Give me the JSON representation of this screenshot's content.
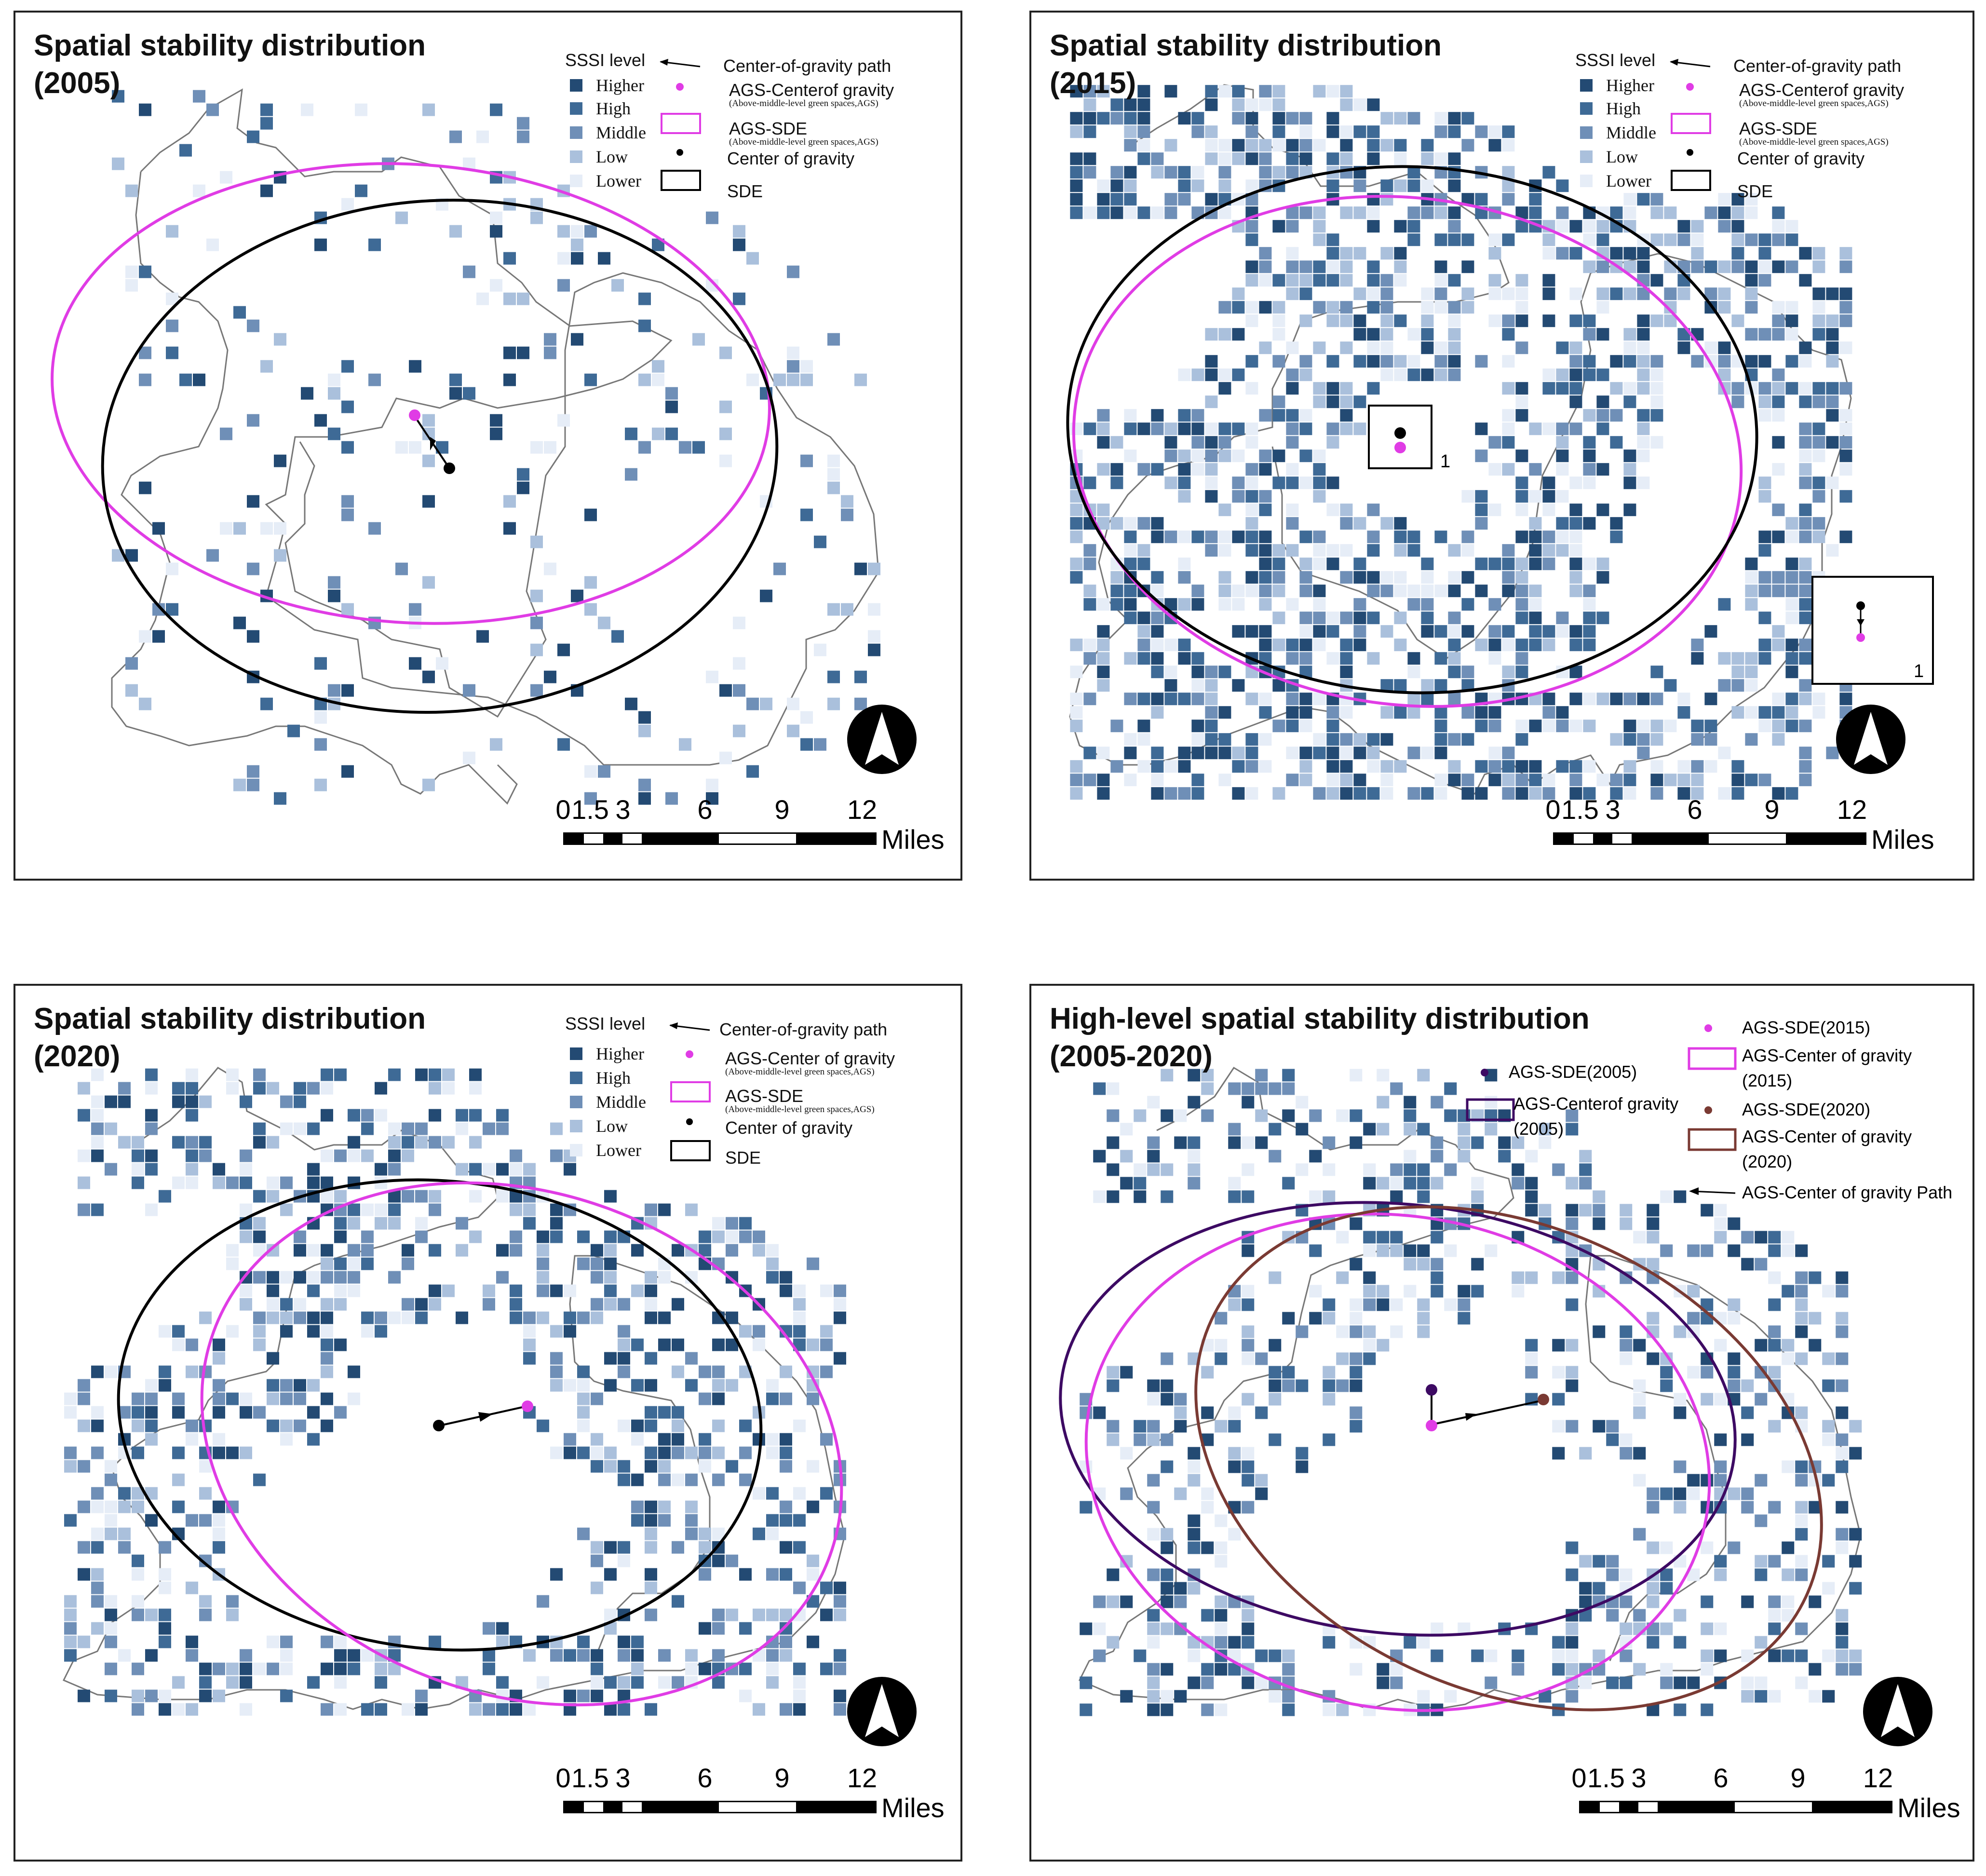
{
  "colors": {
    "higher": "#234a73",
    "high": "#3e6a96",
    "middle": "#6f8fb7",
    "low": "#aac0dc",
    "lower": "#e6edf7",
    "magenta": "#e03ce5",
    "black": "#000000",
    "purple2005": "#3d0a63",
    "brown2020": "#7a3a33"
  },
  "panels": [
    {
      "title_line1": "Spatial stability distribution",
      "title_line2": "(2005)",
      "legend": {
        "title": "SSSI level",
        "levels": [
          "Higher",
          "High",
          "Middle",
          "Low",
          "Lower"
        ],
        "path_label": "Center-of-gravity path",
        "ags_center_label": "AGS-Centerof gravity",
        "ags_center_sub": "(Above-middle-level green spaces,AGS)",
        "ags_sde_label": "AGS-SDE",
        "ags_sde_sub": "(Above-middle-level green spaces,AGS)",
        "center_label": "Center of gravity",
        "sde_label": "SDE"
      },
      "scale": {
        "ticks": [
          "0",
          "1.5",
          "3",
          "6",
          "9",
          "12"
        ],
        "unit": "Miles"
      }
    },
    {
      "title_line1": "Spatial stability distribution",
      "title_line2": "(2015)",
      "legend": {
        "title": "SSSI level",
        "levels": [
          "Higher",
          "High",
          "Middle",
          "Low",
          "Lower"
        ],
        "path_label": "Center-of-gravity path",
        "ags_center_label": "AGS-Centerof gravity",
        "ags_center_sub": "(Above-middle-level green spaces,AGS)",
        "ags_sde_label": "AGS-SDE",
        "ags_sde_sub": "(Above-middle-level green spaces,AGS)",
        "center_label": "Center of gravity",
        "sde_label": "SDE"
      },
      "inset_label": "1",
      "inset2_label": "1",
      "scale": {
        "ticks": [
          "0",
          "1.5",
          "3",
          "6",
          "9",
          "12"
        ],
        "unit": "Miles"
      }
    },
    {
      "title_line1": "Spatial stability distribution",
      "title_line2": "(2020)",
      "legend": {
        "title": "SSSI level",
        "levels": [
          "Higher",
          "High",
          "Middle",
          "Low",
          "Lower"
        ],
        "path_label": "Center-of-gravity path",
        "ags_center_label": "AGS-Center of gravity",
        "ags_center_sub": "(Above-middle-level green spaces,AGS)",
        "ags_sde_label": "AGS-SDE",
        "ags_sde_sub": "(Above-middle-level green spaces,AGS)",
        "center_label": "Center of gravity",
        "sde_label": "SDE"
      },
      "scale": {
        "ticks": [
          "0",
          "1.5",
          "3",
          "6",
          "9",
          "12"
        ],
        "unit": "Miles"
      }
    },
    {
      "title_line1": "High-level spatial stability distribution",
      "title_line2": "(2005-2020)",
      "legend": {
        "sde2005": "AGS-SDE(2005)",
        "center2005_a": "AGS-Centerof gravity",
        "center2005_b": "(2005)",
        "sde2015": "AGS-SDE(2015)",
        "center2015_a": "AGS-Center of gravity",
        "center2015_b": "(2015)",
        "sde2020": "AGS-SDE(2020)",
        "center2020_a": "AGS-Center of gravity",
        "center2020_b": "(2020)",
        "path": "AGS-Center of gravity Path"
      },
      "scale": {
        "ticks": [
          "0",
          "1.5",
          "3",
          "6",
          "9",
          "12"
        ],
        "unit": "Miles"
      }
    }
  ]
}
